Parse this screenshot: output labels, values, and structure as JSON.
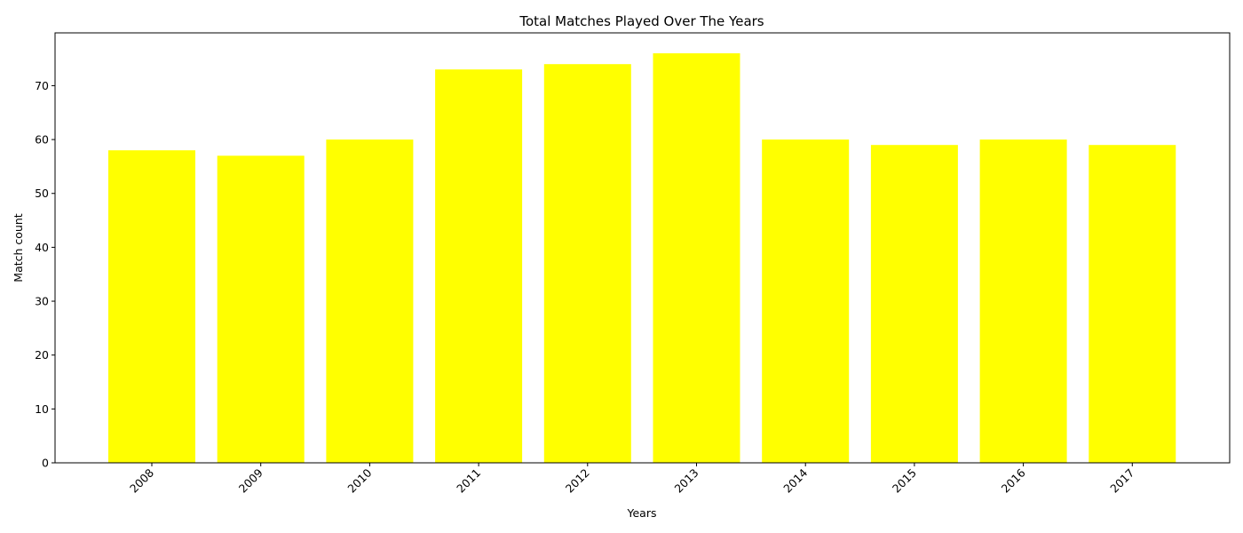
{
  "chart_data": {
    "type": "bar",
    "title": "Total Matches Played Over The Years",
    "xlabel": "Years",
    "ylabel": "Match count",
    "categories": [
      "2008",
      "2009",
      "2010",
      "2011",
      "2012",
      "2013",
      "2014",
      "2015",
      "2016",
      "2017"
    ],
    "values": [
      58,
      57,
      60,
      73,
      74,
      76,
      60,
      59,
      60,
      59
    ],
    "ylim": [
      0,
      79.8
    ],
    "yticks": [
      0,
      10,
      20,
      30,
      40,
      50,
      60,
      70
    ],
    "bar_color": "#ffff00",
    "grid": false,
    "legend": false
  }
}
